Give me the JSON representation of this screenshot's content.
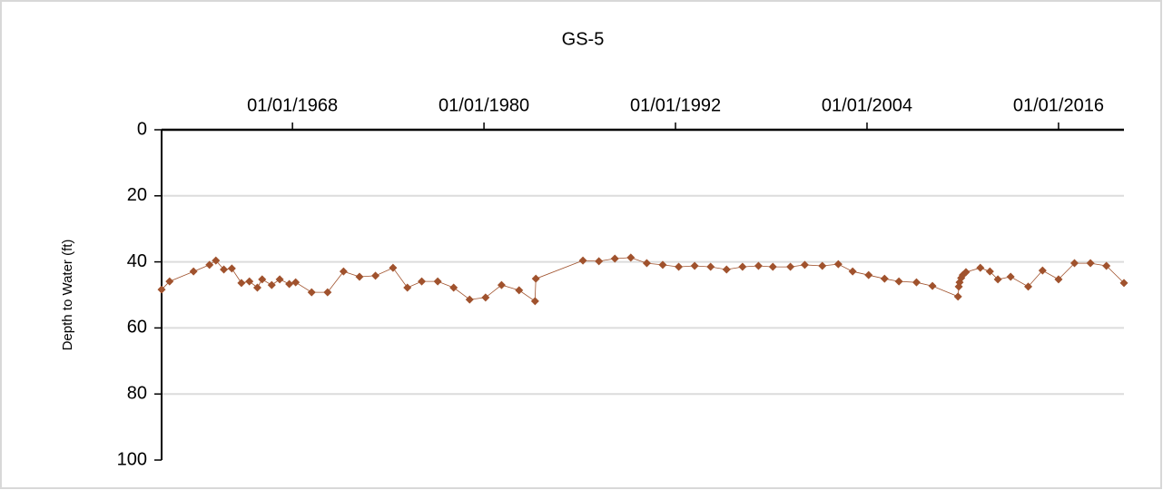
{
  "chart_data": {
    "type": "line",
    "title": "GS-5",
    "y_label": "Depth to Water (ft)",
    "x": [
      1959.8,
      1960.3,
      1961.8,
      1962.8,
      1963.2,
      1963.7,
      1964.2,
      1964.8,
      1965.3,
      1965.8,
      1966.1,
      1966.7,
      1967.2,
      1967.8,
      1968.2,
      1969.2,
      1970.2,
      1971.2,
      1972.2,
      1973.2,
      1974.3,
      1975.2,
      1976.1,
      1977.1,
      1978.1,
      1979.1,
      1980.1,
      1981.1,
      1982.2,
      1983.2,
      1983.25,
      1986.2,
      1987.2,
      1988.2,
      1989.2,
      1990.2,
      1991.2,
      1992.2,
      1993.2,
      1994.2,
      1995.2,
      1996.2,
      1997.2,
      1998.1,
      1999.2,
      2000.1,
      2001.2,
      2002.2,
      2003.1,
      2004.1,
      2005.1,
      2006.0,
      2007.1,
      2008.1,
      2009.7,
      2009.75,
      2009.8,
      2009.9,
      2010.0,
      2010.2,
      2011.1,
      2011.7,
      2012.2,
      2013.0,
      2014.1,
      2015.0,
      2016.0,
      2017.0,
      2018.0,
      2019.0,
      2020.1
    ],
    "series": [
      {
        "name": "GS-5",
        "color": "#a0522d",
        "values": [
          48.4,
          45.9,
          42.9,
          40.9,
          39.6,
          42.3,
          42.0,
          46.4,
          45.9,
          47.8,
          45.3,
          47.0,
          45.3,
          46.7,
          46.2,
          49.2,
          49.2,
          42.9,
          44.5,
          44.2,
          41.8,
          47.8,
          45.9,
          45.9,
          47.8,
          51.4,
          50.8,
          47.0,
          48.6,
          51.9,
          45.1,
          39.6,
          39.8,
          39.0,
          38.7,
          40.4,
          40.9,
          41.5,
          41.2,
          41.5,
          42.3,
          41.5,
          41.2,
          41.5,
          41.5,
          40.9,
          41.2,
          40.7,
          42.9,
          44.0,
          45.1,
          45.9,
          46.2,
          47.3,
          50.5,
          47.5,
          46.2,
          44.9,
          44.0,
          43.1,
          41.8,
          42.9,
          45.3,
          44.5,
          47.5,
          42.6,
          45.3,
          40.4,
          40.4,
          41.2,
          46.4
        ]
      }
    ],
    "xlim": [
      1959.8,
      2020.1
    ],
    "xticks": [
      {
        "value": 1968,
        "label": "01/01/1968"
      },
      {
        "value": 1980,
        "label": "01/01/1980"
      },
      {
        "value": 1992,
        "label": "01/01/1992"
      },
      {
        "value": 2004,
        "label": "01/01/2004"
      },
      {
        "value": 2016,
        "label": "01/01/2016"
      }
    ],
    "ylim": [
      0,
      100
    ],
    "yticks": [
      0,
      20,
      40,
      60,
      80,
      100
    ],
    "y_inverted": true,
    "x_axis_position": "top",
    "grid": true
  }
}
